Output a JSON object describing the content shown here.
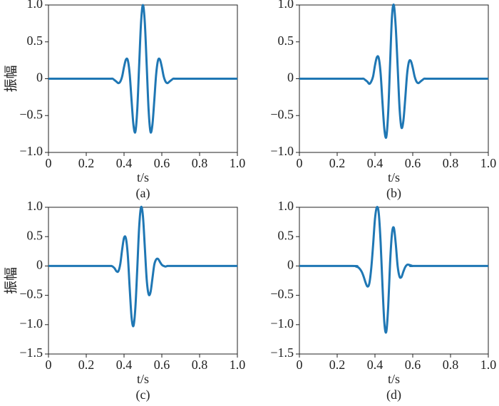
{
  "chart_data": [
    {
      "type": "line",
      "caption": "(a)",
      "xlabel": "t/s",
      "ylabel": "振幅",
      "color": "#1f77b4",
      "x": [
        0,
        0.3,
        0.33,
        0.34,
        0.35,
        0.36,
        0.37,
        0.38,
        0.39,
        0.4,
        0.41,
        0.42,
        0.43,
        0.44,
        0.45,
        0.46,
        0.47,
        0.48,
        0.49,
        0.5,
        0.51,
        0.52,
        0.53,
        0.54,
        0.55,
        0.56,
        0.57,
        0.58,
        0.59,
        0.6,
        0.61,
        0.62,
        0.63,
        0.64,
        0.65,
        0.66,
        0.67,
        0.7,
        1
      ],
      "values": [
        0,
        0,
        0,
        0,
        -0.02,
        -0.04,
        -0.06,
        -0.04,
        0.03,
        0.16,
        0.26,
        0.25,
        0.06,
        -0.3,
        -0.63,
        -0.72,
        -0.42,
        0.18,
        0.76,
        1,
        0.76,
        0.18,
        -0.42,
        -0.72,
        -0.63,
        -0.3,
        0.06,
        0.25,
        0.26,
        0.16,
        0.03,
        -0.04,
        -0.06,
        -0.04,
        -0.02,
        0,
        0,
        0,
        0
      ],
      "xlim": [
        0,
        1
      ],
      "ylim": [
        -1,
        1
      ],
      "xticks": [
        0,
        0.2,
        0.4,
        0.6,
        0.8,
        {
          "value": 1,
          "label": "1.0"
        }
      ],
      "yticks": [
        {
          "value": -1,
          "label": "−1.0"
        },
        {
          "value": -0.5,
          "label": "−0.5"
        },
        0,
        0.5,
        {
          "value": 1,
          "label": "1.0"
        }
      ]
    },
    {
      "type": "line",
      "caption": "(b)",
      "xlabel": "t/s",
      "color": "#1f77b4",
      "x": [
        0,
        0.3,
        0.33,
        0.34,
        0.35,
        0.36,
        0.37,
        0.38,
        0.39,
        0.4,
        0.41,
        0.42,
        0.43,
        0.44,
        0.45,
        0.46,
        0.47,
        0.48,
        0.49,
        0.5,
        0.51,
        0.52,
        0.53,
        0.54,
        0.55,
        0.56,
        0.57,
        0.58,
        0.59,
        0.6,
        0.61,
        0.62,
        0.63,
        0.64,
        0.65,
        0.66,
        0.67,
        0.7,
        1
      ],
      "values": [
        0,
        0,
        0,
        0,
        -0.02,
        -0.04,
        -0.07,
        -0.04,
        0.03,
        0.18,
        0.29,
        0.28,
        0.07,
        -0.33,
        -0.69,
        -0.79,
        -0.46,
        0.2,
        0.84,
        1,
        0.7,
        0.17,
        -0.39,
        -0.66,
        -0.58,
        -0.28,
        0.06,
        0.23,
        0.24,
        0.15,
        0.03,
        -0.04,
        -0.06,
        -0.04,
        -0.02,
        0,
        0,
        0,
        0
      ],
      "xlim": [
        0,
        1
      ],
      "ylim": [
        -1,
        1
      ],
      "xticks": [
        0,
        0.2,
        0.4,
        0.6,
        0.8,
        {
          "value": 1,
          "label": "1.0"
        }
      ],
      "yticks": [
        {
          "value": -1,
          "label": "−1.0"
        },
        {
          "value": -0.5,
          "label": "−0.5"
        },
        0,
        0.5,
        {
          "value": 1,
          "label": "1.0"
        }
      ]
    },
    {
      "type": "line",
      "caption": "(c)",
      "xlabel": "t/s",
      "ylabel": "振幅",
      "color": "#1f77b4",
      "x": [
        0,
        0.3,
        0.33,
        0.34,
        0.35,
        0.36,
        0.37,
        0.38,
        0.39,
        0.4,
        0.41,
        0.42,
        0.43,
        0.44,
        0.45,
        0.46,
        0.47,
        0.48,
        0.49,
        0.5,
        0.51,
        0.52,
        0.53,
        0.54,
        0.55,
        0.56,
        0.57,
        0.58,
        0.59,
        0.6,
        0.61,
        0.62,
        0.63,
        0.64,
        0.65,
        0.66,
        0.67,
        0.7,
        1
      ],
      "values": [
        0,
        0,
        0,
        -0.01,
        -0.04,
        -0.09,
        -0.09,
        0.03,
        0.28,
        0.48,
        0.47,
        0.18,
        -0.38,
        -0.88,
        -1.02,
        -0.71,
        -0.05,
        0.66,
        1,
        0.85,
        0.32,
        -0.23,
        -0.48,
        -0.45,
        -0.22,
        0.02,
        0.11,
        0.12,
        0.07,
        0.02,
        0,
        -0.01,
        0,
        0,
        0,
        0,
        0,
        0,
        0
      ],
      "xlim": [
        0,
        1
      ],
      "ylim": [
        -1.5,
        1
      ],
      "xticks": [
        0,
        0.2,
        0.4,
        0.6,
        0.8,
        {
          "value": 1,
          "label": "1.0"
        }
      ],
      "yticks": [
        {
          "value": -1.5,
          "label": "−1.5"
        },
        {
          "value": -1,
          "label": "−1.0"
        },
        {
          "value": -0.5,
          "label": "−0.5"
        },
        0,
        0.5,
        {
          "value": 1,
          "label": "1.0"
        }
      ]
    },
    {
      "type": "line",
      "caption": "(d)",
      "xlabel": "t/s",
      "color": "#1f77b4",
      "x": [
        0,
        0.28,
        0.3,
        0.31,
        0.32,
        0.33,
        0.34,
        0.35,
        0.36,
        0.37,
        0.38,
        0.39,
        0.4,
        0.41,
        0.42,
        0.43,
        0.44,
        0.45,
        0.46,
        0.47,
        0.48,
        0.49,
        0.5,
        0.51,
        0.52,
        0.53,
        0.54,
        0.55,
        0.56,
        0.57,
        0.58,
        0.59,
        0.6,
        0.62,
        1
      ],
      "values": [
        0,
        0,
        -0.01,
        -0.02,
        -0.05,
        -0.1,
        -0.18,
        -0.28,
        -0.35,
        -0.3,
        -0.05,
        0.35,
        0.8,
        1,
        0.9,
        0.4,
        -0.35,
        -0.98,
        -1.12,
        -0.7,
        0.05,
        0.55,
        0.65,
        0.38,
        0,
        -0.18,
        -0.19,
        -0.1,
        -0.02,
        0.02,
        0.02,
        0.01,
        0,
        0,
        0
      ],
      "xlim": [
        0,
        1
      ],
      "ylim": [
        -1.5,
        1
      ],
      "xticks": [
        0,
        0.2,
        0.4,
        0.6,
        0.8,
        {
          "value": 1,
          "label": "1.0"
        }
      ],
      "yticks": [
        {
          "value": -1.5,
          "label": "−1.5"
        },
        {
          "value": -1,
          "label": "−1.0"
        },
        {
          "value": -0.5,
          "label": "−0.5"
        },
        0,
        0.5,
        {
          "value": 1,
          "label": "1.0"
        }
      ]
    }
  ]
}
